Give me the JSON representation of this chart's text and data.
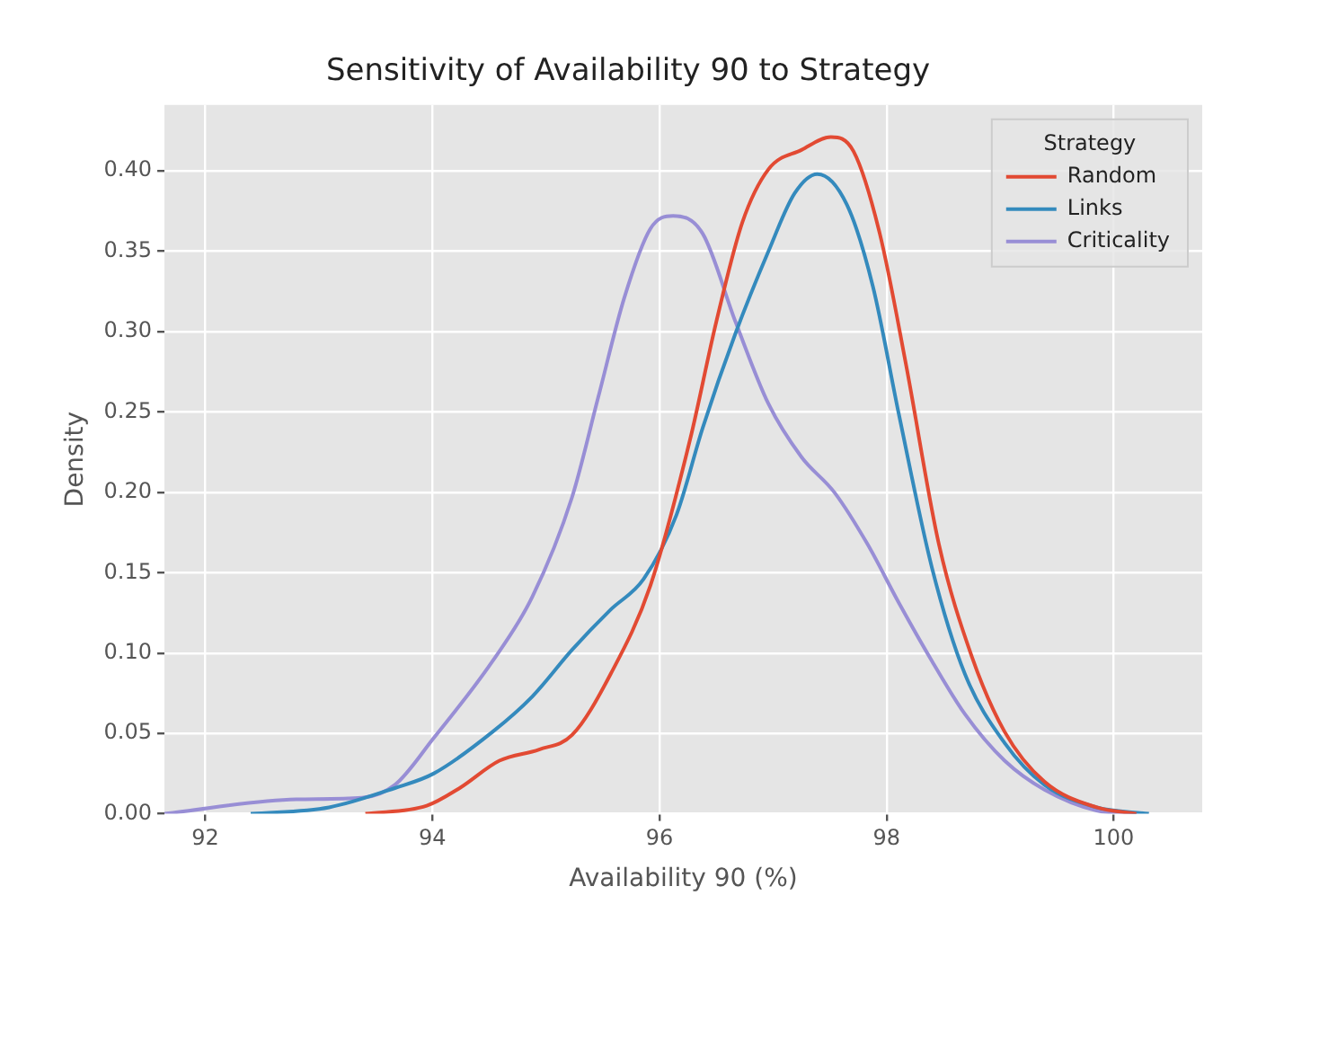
{
  "chart_data": {
    "type": "line",
    "title": "Sensitivity of Availability 90 to Strategy",
    "xlabel": "Availability 90 (%)",
    "ylabel": "Density",
    "legend_title": "Strategy",
    "legend": "top right",
    "grid": true,
    "marker": "none",
    "line_style": "solid",
    "xlim": [
      91.64,
      100.78
    ],
    "xticks": [
      92,
      94,
      96,
      98,
      100
    ],
    "ylim": [
      0,
      0.441
    ],
    "yticks": [
      {
        "value": 0,
        "label": "0.00"
      },
      {
        "value": 0.05,
        "label": "0.05"
      },
      {
        "value": 0.1,
        "label": "0.10"
      },
      {
        "value": 0.15,
        "label": "0.15"
      },
      {
        "value": 0.2,
        "label": "0.20"
      },
      {
        "value": 0.25,
        "label": "0.25"
      },
      {
        "value": 0.3,
        "label": "0.30"
      },
      {
        "value": 0.35,
        "label": "0.35"
      },
      {
        "value": 0.4,
        "label": "0.40"
      }
    ],
    "series": [
      {
        "name": "Random",
        "color": "#e24a33",
        "x": [
          93.41,
          93.95,
          94.24,
          94.59,
          94.94,
          95.23,
          95.57,
          95.92,
          96.27,
          96.5,
          96.73,
          96.96,
          97.25,
          97.51,
          97.71,
          97.94,
          98.17,
          98.46,
          98.75,
          99.04,
          99.39,
          99.85,
          100.2
        ],
        "values": [
          0,
          0.005,
          0.016,
          0.033,
          0.04,
          0.049,
          0.087,
          0.142,
          0.233,
          0.306,
          0.368,
          0.401,
          0.413,
          0.421,
          0.412,
          0.361,
          0.28,
          0.168,
          0.098,
          0.051,
          0.02,
          0.004,
          0
        ]
      },
      {
        "name": "Links",
        "color": "#348abd",
        "x": [
          92.4,
          93.09,
          93.67,
          94.01,
          94.53,
          94.88,
          95.23,
          95.57,
          95.86,
          96.15,
          96.38,
          96.67,
          96.96,
          97.19,
          97.39,
          97.65,
          97.88,
          98.11,
          98.4,
          98.69,
          99.04,
          99.39,
          99.85,
          100.31
        ],
        "values": [
          0,
          0.004,
          0.016,
          0.025,
          0.051,
          0.073,
          0.102,
          0.127,
          0.146,
          0.186,
          0.24,
          0.299,
          0.35,
          0.386,
          0.398,
          0.379,
          0.328,
          0.248,
          0.153,
          0.087,
          0.044,
          0.018,
          0.004,
          0
        ]
      },
      {
        "name": "Criticality",
        "color": "#988ed5",
        "x": [
          91.64,
          92.8,
          93.38,
          93.67,
          94.01,
          94.53,
          94.88,
          95.23,
          95.46,
          95.69,
          95.92,
          96.12,
          96.38,
          96.67,
          96.96,
          97.25,
          97.54,
          97.83,
          98.11,
          98.4,
          98.69,
          99.04,
          99.39,
          99.85,
          100.2
        ],
        "values": [
          0,
          0.009,
          0.01,
          0.018,
          0.047,
          0.095,
          0.135,
          0.197,
          0.259,
          0.321,
          0.364,
          0.372,
          0.361,
          0.306,
          0.255,
          0.222,
          0.2,
          0.168,
          0.131,
          0.095,
          0.062,
          0.033,
          0.015,
          0.002,
          0
        ]
      }
    ]
  }
}
